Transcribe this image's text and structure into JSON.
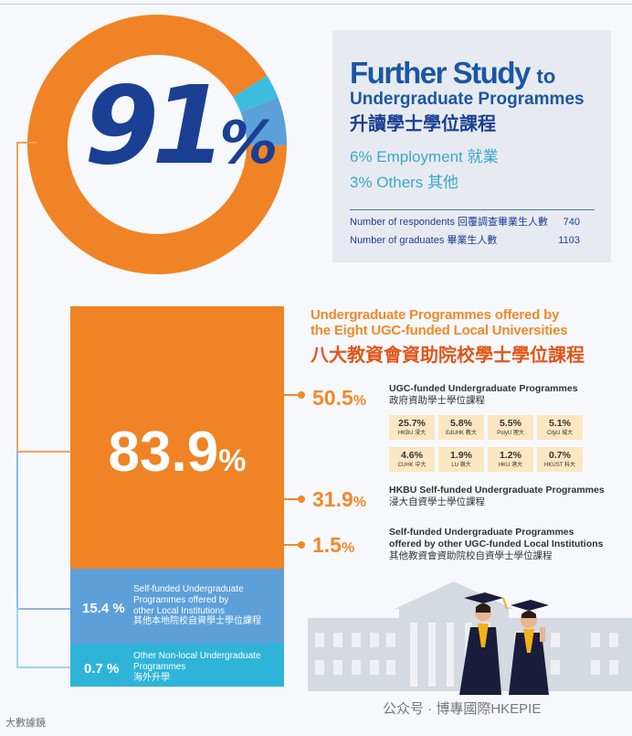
{
  "headline": {
    "percent_value": "91",
    "percent_sign": "%",
    "title_en": "Further Study",
    "title_to": "to",
    "subtitle_en": "Undergraduate Programmes",
    "title_zh": "升讀學士學位課程",
    "employment": "6% Employment 就業",
    "others": "3% Others 其他"
  },
  "stats": [
    {
      "label": "Number of respondents 回覆調查畢業生人數",
      "value": "740"
    },
    {
      "label": "Number of graduates 畢業生人數",
      "value": "1103"
    }
  ],
  "donut": {
    "segments": [
      {
        "name": "Further Study",
        "value": 91,
        "color": "#f08325"
      },
      {
        "name": "Employment",
        "value": 6,
        "color": "#5da0d9"
      },
      {
        "name": "Others",
        "value": 3,
        "color": "#3cbde0"
      }
    ]
  },
  "left_blocks": {
    "ugc_total": {
      "value": "83.9",
      "sign": "%"
    },
    "self_funded_other": {
      "pct": "15.4 %",
      "lines": [
        "Self-funded Undergraduate",
        "Programmes offered by",
        "other Local Institutions",
        "其他本地院校自資學士學位課程"
      ]
    },
    "non_local": {
      "pct": "0.7 %",
      "lines": [
        "Other Non-local Undergraduate",
        "Programmes",
        "海外升學"
      ]
    }
  },
  "ugc_section": {
    "title_lines": [
      "Undergraduate Programmes offered by",
      "the Eight UGC-funded Local Universities"
    ],
    "title_zh": "八大教資會資助院校學士學位課程",
    "rows": [
      {
        "pct": "50.5",
        "sign": "%",
        "lines": [
          "UGC-funded Undergraduate Programmes",
          "政府資助學士學位課程"
        ]
      },
      {
        "pct": "31.9",
        "sign": "%",
        "lines": [
          "HKBU Self-funded Undergraduate Programmes",
          "浸大自資學士學位課程"
        ]
      },
      {
        "pct": "1.5",
        "sign": "%",
        "lines": [
          "Self-funded Undergraduate Programmes",
          "offered by other UGC-funded Local Institutions",
          "其他教資會資助院校自資學士學位課程"
        ]
      }
    ],
    "universities": [
      {
        "pct": "25.7%",
        "name": "HKBU 浸大"
      },
      {
        "pct": "5.8%",
        "name": "EdUHK 教大"
      },
      {
        "pct": "5.5%",
        "name": "PolyU 理大"
      },
      {
        "pct": "5.1%",
        "name": "CityU 城大"
      },
      {
        "pct": "4.6%",
        "name": "CUHK 中大"
      },
      {
        "pct": "1.9%",
        "name": "LU 嶺大"
      },
      {
        "pct": "1.2%",
        "name": "HKU 港大"
      },
      {
        "pct": "0.7%",
        "name": "HKUST 科大"
      }
    ]
  },
  "chart_data": {
    "type": "pie",
    "title": "Further Study to Undergraduate Programmes",
    "categories": [
      "Further Study 升讀學士學位課程",
      "Employment 就業",
      "Others 其他"
    ],
    "values": [
      91,
      6,
      3
    ],
    "breakdown": {
      "categories": [
        "UGC-funded Undergraduate Programmes",
        "HKBU Self-funded Undergraduate Programmes",
        "Self-funded Undergraduate Programmes offered by other UGC-funded Local Institutions",
        "Self-funded Undergraduate Programmes offered by other Local Institutions",
        "Other Non-local Undergraduate Programmes"
      ],
      "values": [
        50.5,
        31.9,
        1.5,
        15.4,
        0.7
      ]
    },
    "universities": {
      "categories": [
        "HKBU",
        "EdUHK",
        "PolyU",
        "CityU",
        "CUHK",
        "LU",
        "HKU",
        "HKUST"
      ],
      "values": [
        25.7,
        5.8,
        5.5,
        5.1,
        4.6,
        1.9,
        1.2,
        0.7
      ]
    }
  },
  "watermarks": {
    "left": "大數據鏡",
    "right": "公众号 · 博專國際HKEPIE"
  }
}
